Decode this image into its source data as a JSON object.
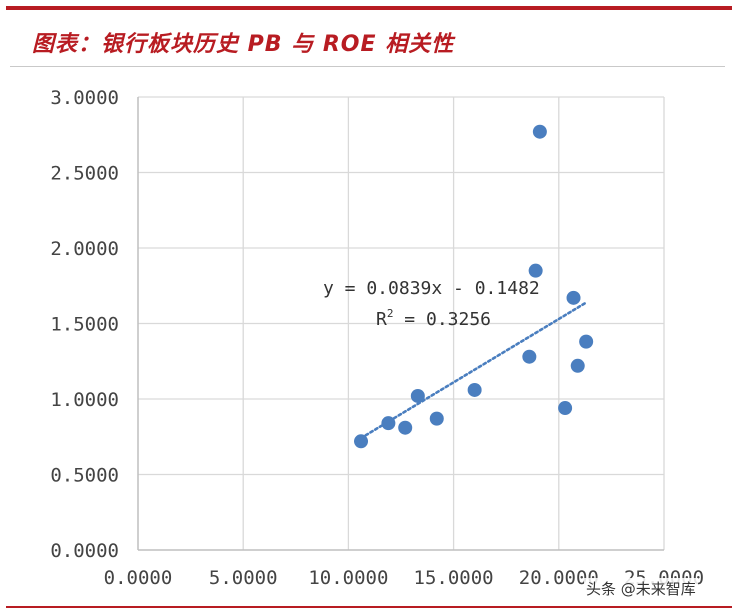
{
  "header": {
    "title": "图表：银行板块历史 PB 与 ROE 相关性"
  },
  "watermark": {
    "text": "头条 @未来智库"
  },
  "trendline": {
    "equation": "y = 0.0839x - 0.1482",
    "r2_prefix": "R",
    "r2_sup": "2",
    "r2_rest": " = 0.3256"
  },
  "chart_data": {
    "type": "scatter",
    "title": "",
    "xlabel": "",
    "ylabel": "",
    "xlim": [
      0,
      25
    ],
    "ylim": [
      0,
      3
    ],
    "x_tick_labels": [
      "0.0000",
      "5.0000",
      "10.0000",
      "15.0000",
      "20.0000",
      "25.0000"
    ],
    "y_tick_labels": [
      "0.0000",
      "0.5000",
      "1.0000",
      "1.5000",
      "2.0000",
      "2.5000",
      "3.0000"
    ],
    "grid": true,
    "colors": {
      "points": "#4a7ebf",
      "trendline": "#4a7ebf",
      "grid": "#d9d9d9",
      "accent": "#b81c22"
    },
    "series": [
      {
        "x": [
          10.6,
          11.9,
          12.7,
          13.3,
          14.2,
          16.0,
          18.6,
          18.9,
          19.1,
          20.3,
          20.7,
          20.9,
          21.3
        ],
        "y": [
          0.72,
          0.84,
          0.81,
          1.02,
          0.87,
          1.06,
          1.28,
          1.85,
          2.77,
          0.94,
          1.67,
          1.22,
          1.38
        ]
      }
    ],
    "trendline": {
      "slope": 0.0839,
      "intercept": -0.1482,
      "x_range": [
        10.6,
        21.3
      ]
    }
  }
}
